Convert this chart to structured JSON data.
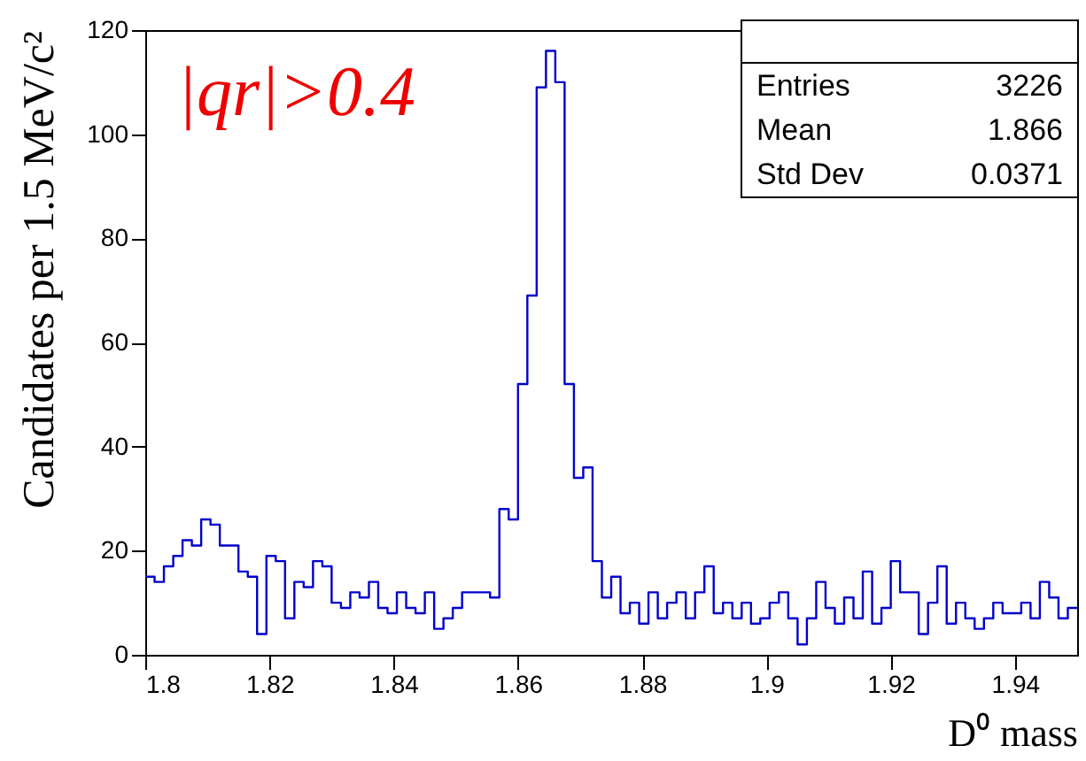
{
  "chart_data": {
    "type": "histogram",
    "xlabel": "D⁰ mass",
    "ylabel": "Candidates per 1.5 MeV/c²",
    "annotations": [
      "|qr|>0.4",
      "Entries",
      "3226",
      "Mean",
      "1.866",
      "Std Dev",
      "0.0371"
    ],
    "bins": [
      1.8,
      1.8015,
      1.803,
      1.8045,
      1.806,
      1.8075,
      1.809,
      1.8105,
      1.812,
      1.8135,
      1.815,
      1.8165,
      1.818,
      1.8195,
      1.821,
      1.8225,
      1.824,
      1.8255,
      1.827,
      1.8285,
      1.83,
      1.8315,
      1.833,
      1.8345,
      1.836,
      1.8375,
      1.839,
      1.8405,
      1.842,
      1.8435,
      1.845,
      1.8465,
      1.848,
      1.8495,
      1.851,
      1.8525,
      1.854,
      1.8555,
      1.857,
      1.8585,
      1.86,
      1.8615,
      1.863,
      1.8645,
      1.866,
      1.8675,
      1.869,
      1.8705,
      1.872,
      1.8735,
      1.875,
      1.8765,
      1.878,
      1.8795,
      1.881,
      1.8825,
      1.884,
      1.8855,
      1.887,
      1.8885,
      1.89,
      1.8915,
      1.893,
      1.8945,
      1.896,
      1.8975,
      1.899,
      1.9005,
      1.902,
      1.9035,
      1.905,
      1.9065,
      1.908,
      1.9095,
      1.911,
      1.9125,
      1.914,
      1.9155,
      1.917,
      1.9185,
      1.92,
      1.9215,
      1.923,
      1.9245,
      1.926,
      1.9275,
      1.929,
      1.9305,
      1.932,
      1.9335,
      1.935,
      1.9365,
      1.938,
      1.9395,
      1.941,
      1.9425,
      1.944,
      1.9455,
      1.947,
      1.9485,
      1.95
    ],
    "values": [
      15,
      14,
      17,
      19,
      22,
      21,
      26,
      25,
      21,
      21,
      16,
      15,
      4,
      19,
      18,
      7,
      14,
      13,
      18,
      17,
      10,
      9,
      12,
      11,
      14,
      9,
      8,
      12,
      9,
      8,
      12,
      5,
      7,
      9,
      12,
      12,
      12,
      11,
      28,
      26,
      52,
      69,
      109,
      116,
      110,
      52,
      34,
      36,
      18,
      11,
      15,
      8,
      10,
      6,
      12,
      7,
      10,
      12,
      7,
      12,
      17,
      8,
      10,
      7,
      10,
      6,
      7,
      10,
      12,
      7,
      2,
      7,
      14,
      9,
      6,
      11,
      7,
      16,
      6,
      9,
      18,
      12,
      12,
      4,
      10,
      17,
      6,
      10,
      7,
      5,
      7,
      10,
      8,
      8,
      10,
      7,
      14,
      11,
      7,
      9
    ],
    "color": "#0000cc",
    "xlim": [
      1.8,
      1.95
    ],
    "xticks": [
      1.8,
      1.82,
      1.84,
      1.86,
      1.88,
      1.9,
      1.92,
      1.94
    ],
    "ylim": [
      0,
      120
    ],
    "yticks": [
      0,
      20,
      40,
      60,
      80,
      100,
      120
    ],
    "grid": false
  }
}
